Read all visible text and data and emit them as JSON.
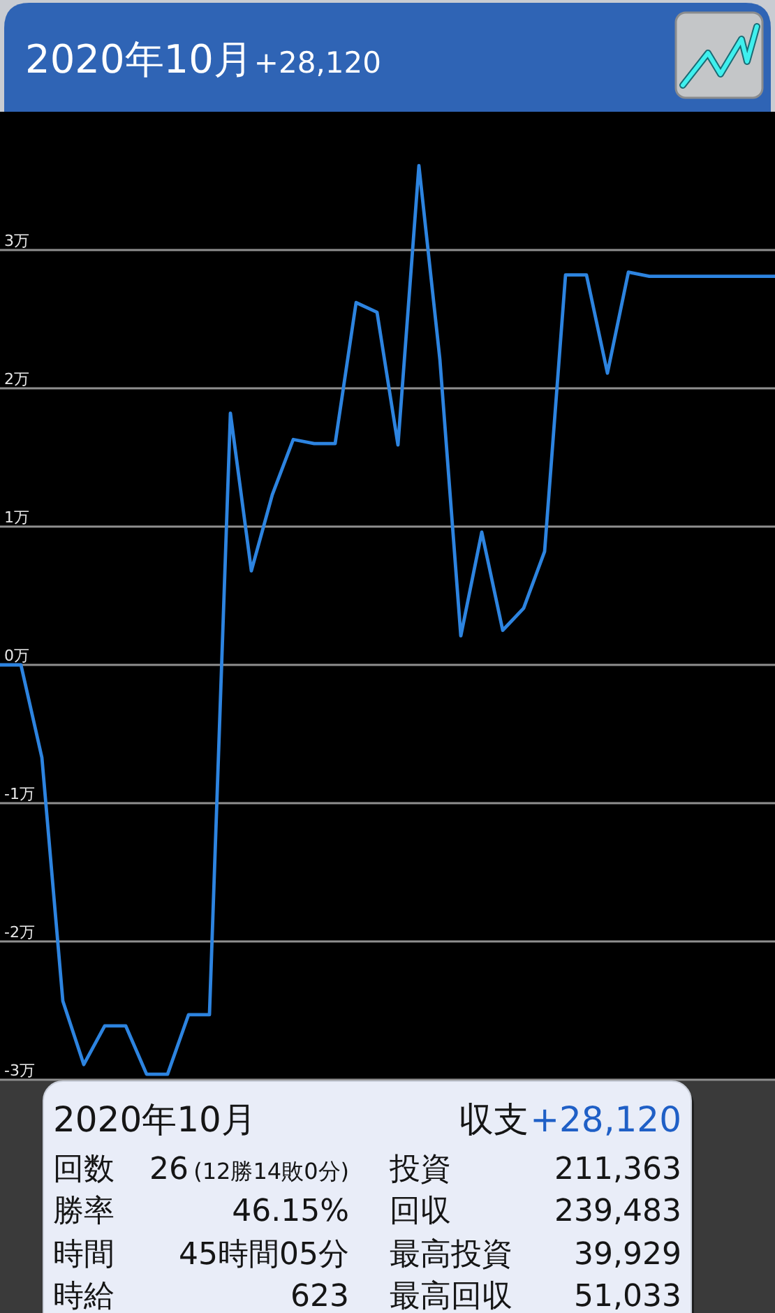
{
  "chart_data": [
    {
      "type": "line",
      "title": "2020年10月",
      "subtitle": "+28,120",
      "categories": [
        null,
        null,
        null,
        null,
        null,
        null,
        null,
        null,
        null,
        null,
        null,
        null,
        null,
        null,
        null,
        null,
        null,
        null,
        null,
        null,
        null,
        null,
        null,
        null,
        null,
        null,
        null,
        null,
        null,
        null,
        null,
        null,
        null,
        null,
        null,
        null,
        null,
        null
      ],
      "values": [
        0,
        0,
        -0.67,
        -2.43,
        -2.89,
        -2.61,
        -2.61,
        -2.96,
        -2.96,
        -2.53,
        -2.53,
        1.82,
        0.68,
        1.23,
        1.63,
        1.6,
        1.6,
        2.62,
        2.55,
        1.59,
        3.61,
        2.21,
        0.21,
        0.96,
        0.25,
        0.41,
        0.82,
        2.82,
        2.82,
        2.11,
        2.84,
        2.81,
        2.81,
        2.81,
        2.81,
        2.81,
        2.81,
        2.81
      ],
      "color": "#2d84e0",
      "ylim": [
        -3,
        4
      ],
      "yticks": [
        {
          "value": -3,
          "label": "-3万"
        },
        {
          "value": -2,
          "label": "-2万"
        },
        {
          "value": -1,
          "label": "-1万"
        },
        {
          "value": 0,
          "label": "0万"
        },
        {
          "value": 1,
          "label": "1万"
        },
        {
          "value": 2,
          "label": "2万"
        },
        {
          "value": 3,
          "label": "3万"
        }
      ],
      "grid": "y",
      "tick_labels": "y"
    },
    {
      "type": "other",
      "title": "2020年10月",
      "annotations": [
        "収支",
        "+28,120",
        "回数",
        "26",
        "(12勝14敗0分)",
        "投資",
        "211,363",
        "勝率",
        "46.15%",
        "回収",
        "239,483",
        "時間",
        "45時間05分",
        "最高投資",
        "39,929",
        "時給",
        "623",
        "最高回収",
        "51,033"
      ]
    }
  ]
}
